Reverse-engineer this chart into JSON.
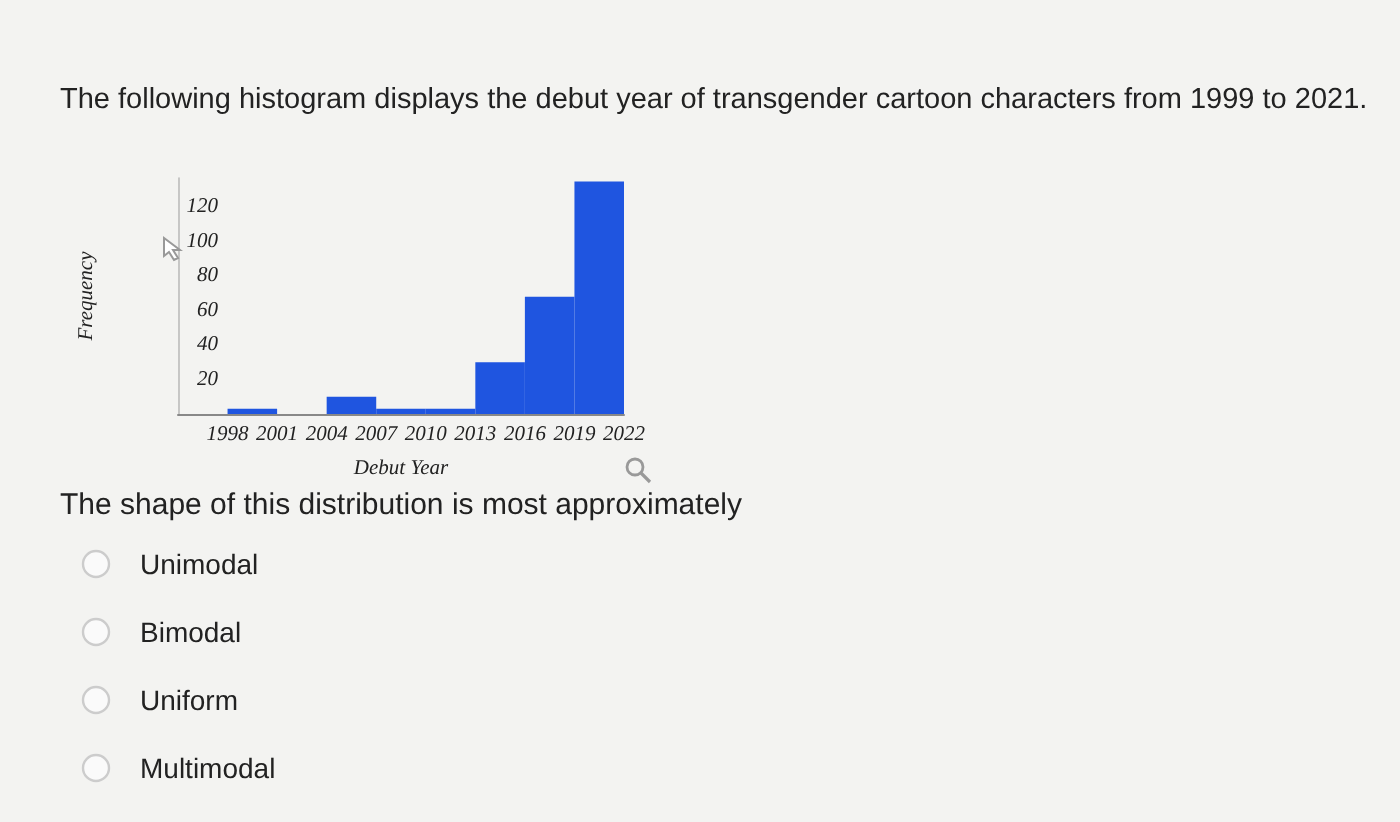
{
  "chart_data": {
    "type": "histogram",
    "title": "The following histogram displays the debut year of transgender cartoon characters from 1999 to 2021.",
    "xlabel": "Debut Year",
    "ylabel": "Frequency",
    "bins": [
      1998,
      2001,
      2004,
      2007,
      2010,
      2013,
      2016,
      2019,
      2022
    ],
    "values": [
      3,
      0,
      10,
      3,
      3,
      30,
      68,
      135
    ],
    "color": "#1f55e0",
    "xlim": [
      1995,
      2022
    ],
    "xticks": [
      1998,
      2001,
      2004,
      2007,
      2010,
      2013,
      2016,
      2019,
      2022
    ],
    "ylim": [
      0,
      137
    ],
    "yticks": [
      20,
      40,
      60,
      80,
      100,
      120
    ],
    "annotations": [
      "The shape of this distribution is most approximately",
      "Unimodal",
      "Bimodal",
      "Uniform",
      "Multimodal"
    ]
  }
}
